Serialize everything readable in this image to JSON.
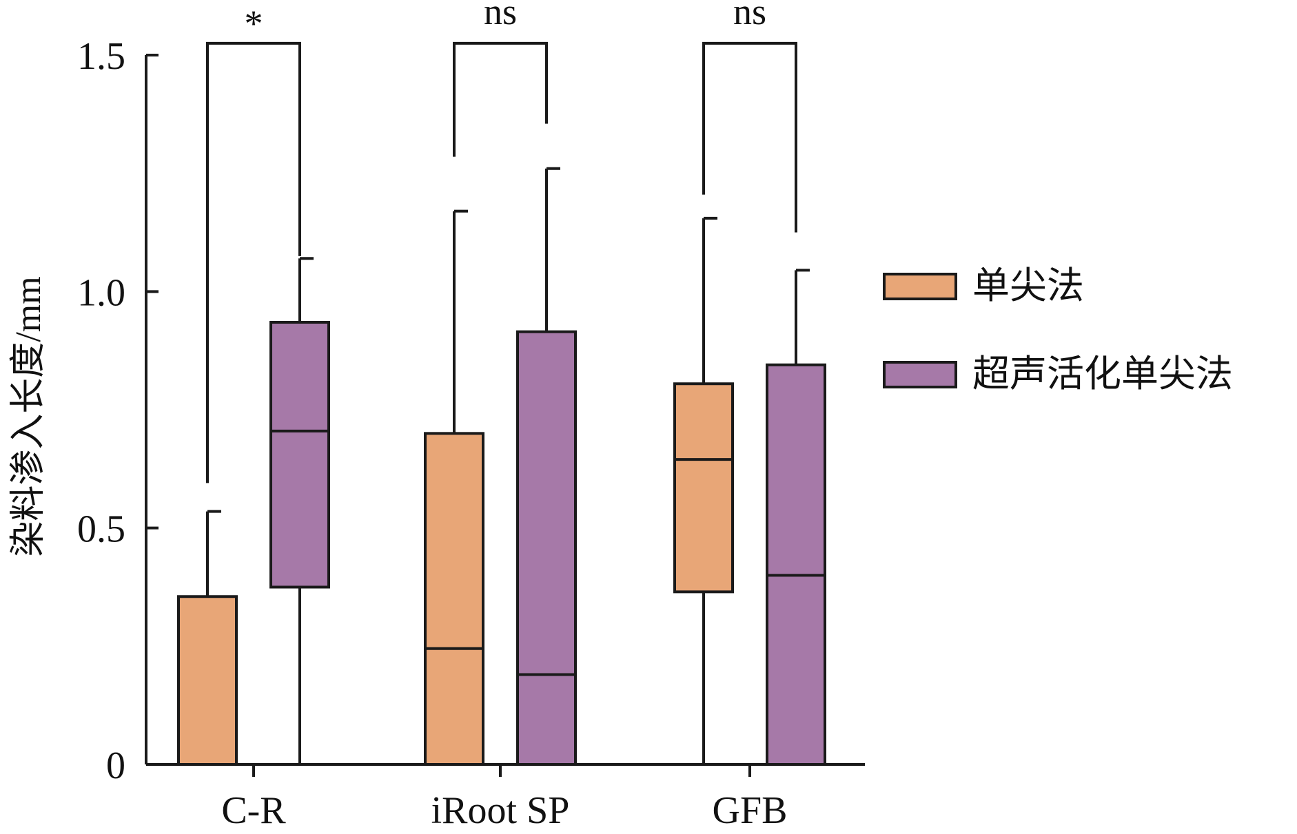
{
  "chart_data": {
    "type": "box",
    "ylabel": "染料渗入长度/mm",
    "ylim": [
      0,
      1.5
    ],
    "yticks": [
      {
        "value": 0,
        "label": "0"
      },
      {
        "value": 0.5,
        "label": "0.5"
      },
      {
        "value": 1.0,
        "label": "1.0"
      },
      {
        "value": 1.5,
        "label": "1.5"
      }
    ],
    "categories": [
      "C-R",
      "iRoot SP",
      "GFB"
    ],
    "series": [
      {
        "name": "单尖法",
        "color": "#E8A677",
        "boxes": [
          {
            "min": 0,
            "q1": 0,
            "median": 0,
            "q3": 0.355,
            "max": 0.535
          },
          {
            "min": 0,
            "q1": 0,
            "median": 0.245,
            "q3": 0.7,
            "max": 1.17
          },
          {
            "min": 0,
            "q1": 0.365,
            "median": 0.645,
            "q3": 0.805,
            "max": 1.155
          }
        ]
      },
      {
        "name": "超声活化单尖法",
        "color": "#A679A8",
        "boxes": [
          {
            "min": 0,
            "q1": 0.375,
            "median": 0.705,
            "q3": 0.935,
            "max": 1.07
          },
          {
            "min": 0,
            "q1": 0,
            "median": 0.19,
            "q3": 0.915,
            "max": 1.26
          },
          {
            "min": 0,
            "q1": 0,
            "median": 0.4,
            "q3": 0.845,
            "max": 1.045
          }
        ]
      }
    ],
    "significance": [
      {
        "category": "C-R",
        "label": "*",
        "bracket_level": 1.525,
        "left_end": 0.595,
        "right_end": 1.075
      },
      {
        "category": "iRoot SP",
        "label": "ns",
        "bracket_level": 1.525,
        "left_end": 1.285,
        "right_end": 1.355
      },
      {
        "category": "GFB",
        "label": "ns",
        "bracket_level": 1.525,
        "left_end": 1.205,
        "right_end": 1.125
      }
    ],
    "legend_position": "right"
  }
}
